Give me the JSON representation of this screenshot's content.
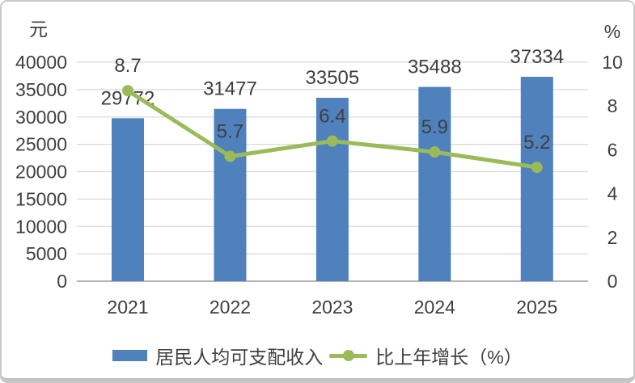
{
  "frame": {
    "background": "#ffffff",
    "border_color": "#c9c9c9"
  },
  "chart_data": {
    "type": "bar+line dual-axis combo",
    "categories": [
      "2021",
      "2022",
      "2023",
      "2024",
      "2025"
    ],
    "series": [
      {
        "name": "居民人均可支配收入",
        "type": "bar",
        "axis": "left",
        "color": "#4f81bd",
        "values": [
          29772,
          31477,
          33505,
          35488,
          37334
        ],
        "labels": [
          "29772",
          "31477",
          "33505",
          "35488",
          "37334"
        ]
      },
      {
        "name": "比上年增长（%）",
        "type": "line",
        "axis": "right",
        "color": "#9bbb59",
        "values": [
          8.7,
          5.7,
          6.4,
          5.9,
          5.2
        ],
        "labels": [
          "8.7",
          "5.7",
          "6.4",
          "5.9",
          "5.2"
        ]
      }
    ],
    "left_axis": {
      "title": "元",
      "min": 0,
      "max": 40000,
      "step": 5000,
      "tick_labels": [
        "40000",
        "35000",
        "30000",
        "25000",
        "20000",
        "15000",
        "10000",
        "5000",
        "0"
      ]
    },
    "right_axis": {
      "title": "%",
      "min": 0,
      "max": 10,
      "step": 2,
      "tick_labels": [
        "10",
        "8",
        "6",
        "4",
        "2",
        "0"
      ]
    },
    "grid": true,
    "legend_position": "bottom",
    "colors": {
      "gridline": "#d9d9d9",
      "axis_line": "#b3b3b3",
      "text": "#3f3f3f"
    }
  }
}
